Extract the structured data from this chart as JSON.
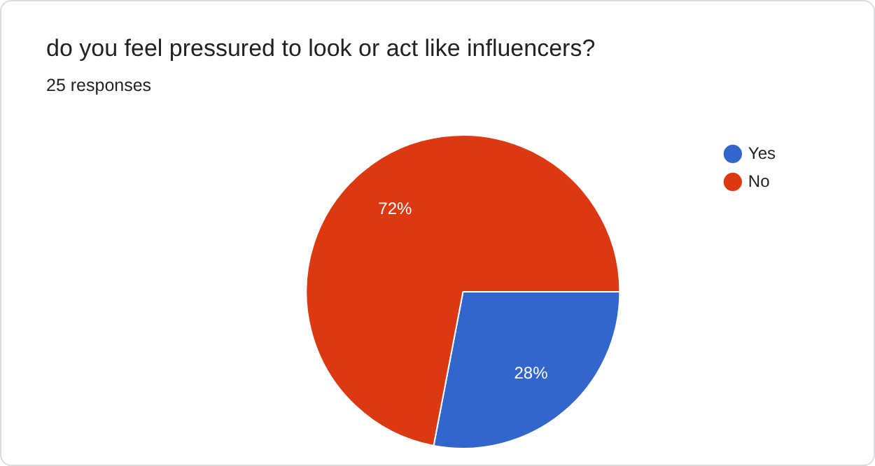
{
  "chart_data": {
    "type": "pie",
    "title": "do you feel pressured to look or act like influencers?",
    "subtitle": "25 responses",
    "categories": [
      "Yes",
      "No"
    ],
    "values": [
      28,
      72
    ],
    "colors": [
      "#3366cc",
      "#dc3912"
    ],
    "value_labels": [
      "28%",
      "72%"
    ],
    "legend": "top right"
  }
}
